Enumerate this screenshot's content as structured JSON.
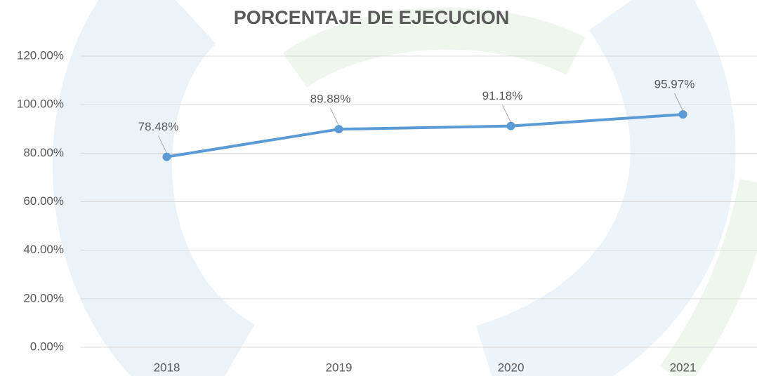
{
  "chart_data": {
    "type": "line",
    "title": "PORCENTAJE DE EJECUCION",
    "categories": [
      "2018",
      "2019",
      "2020",
      "2021"
    ],
    "values": [
      78.48,
      89.88,
      91.18,
      95.97
    ],
    "value_labels": [
      "78.48%",
      "89.88%",
      "91.18%",
      "95.97%"
    ],
    "color": "#5b9bd5",
    "ylim": [
      0,
      120
    ],
    "yticks": [
      {
        "value": 0,
        "label": "0.00%"
      },
      {
        "value": 20,
        "label": "20.00%"
      },
      {
        "value": 40,
        "label": "40.00%"
      },
      {
        "value": 60,
        "label": "60.00%"
      },
      {
        "value": 80,
        "label": "80.00%"
      },
      {
        "value": 100,
        "label": "100.00%"
      },
      {
        "value": 120,
        "label": "120.00%"
      }
    ],
    "grid": true
  }
}
